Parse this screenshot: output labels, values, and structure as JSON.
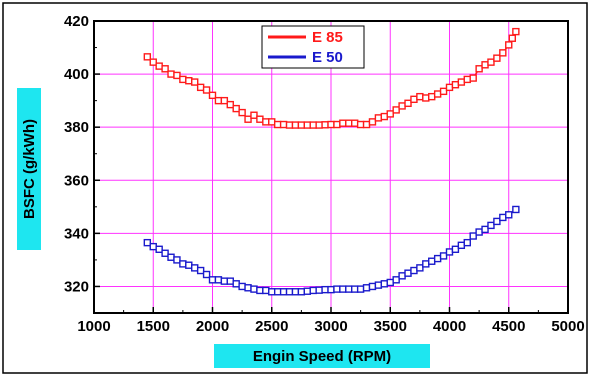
{
  "colors": {
    "e85": "#ff1a1a",
    "e50": "#1a1acc",
    "grid": "#ff33ff",
    "axis_title_background": "#1ee6f0",
    "legend_text": "#1a1acc"
  },
  "chart_data": {
    "type": "line",
    "xlabel": "Engin Speed (RPM)",
    "ylabel": "BSFC (g/kWh)",
    "xlim": [
      1000,
      5000
    ],
    "ylim": [
      310,
      420
    ],
    "x_ticks": [
      1000,
      1500,
      2000,
      2500,
      3000,
      3500,
      4000,
      4500,
      5000
    ],
    "y_ticks": [
      320,
      340,
      360,
      380,
      400,
      420
    ],
    "grid": true,
    "legend_position": "top-center",
    "series": [
      {
        "name": "E 85",
        "color": "#ff1a1a",
        "marker": "square",
        "x": [
          1450,
          1500,
          1550,
          1600,
          1650,
          1700,
          1750,
          1800,
          1850,
          1900,
          1950,
          2000,
          2050,
          2100,
          2150,
          2200,
          2250,
          2300,
          2350,
          2400,
          2450,
          2500,
          2550,
          2600,
          2650,
          2700,
          2750,
          2800,
          2850,
          2900,
          2950,
          3000,
          3050,
          3100,
          3150,
          3200,
          3250,
          3300,
          3350,
          3400,
          3450,
          3500,
          3550,
          3600,
          3650,
          3700,
          3750,
          3800,
          3850,
          3900,
          3950,
          4000,
          4050,
          4100,
          4150,
          4200,
          4250,
          4300,
          4350,
          4400,
          4450,
          4500,
          4530,
          4560
        ],
        "values": [
          406.5,
          404.5,
          403,
          402,
          400,
          399.5,
          398,
          397.5,
          397,
          395,
          394,
          392,
          390,
          390,
          388.5,
          387,
          385.5,
          383,
          384.5,
          383,
          382,
          382,
          381,
          381,
          380.8,
          380.8,
          380.8,
          380.8,
          380.8,
          380.8,
          380.9,
          381,
          381,
          381.5,
          381.5,
          381.5,
          381,
          381,
          382,
          383.5,
          384,
          385,
          386.5,
          388,
          389,
          390.5,
          391.5,
          391,
          391.5,
          392.5,
          393.5,
          395,
          396,
          397,
          398,
          398.5,
          402,
          403.5,
          404.5,
          406,
          408,
          411,
          413.5,
          416
        ]
      },
      {
        "name": "E 50",
        "color": "#1a1acc",
        "marker": "square",
        "x": [
          1450,
          1500,
          1550,
          1600,
          1650,
          1700,
          1750,
          1800,
          1850,
          1900,
          1950,
          2000,
          2050,
          2100,
          2150,
          2200,
          2250,
          2300,
          2350,
          2400,
          2450,
          2500,
          2550,
          2600,
          2650,
          2700,
          2750,
          2800,
          2850,
          2900,
          2950,
          3000,
          3050,
          3100,
          3150,
          3200,
          3250,
          3300,
          3350,
          3400,
          3450,
          3500,
          3550,
          3600,
          3650,
          3700,
          3750,
          3800,
          3850,
          3900,
          3950,
          4000,
          4050,
          4100,
          4150,
          4200,
          4250,
          4300,
          4350,
          4400,
          4450,
          4500,
          4560
        ],
        "values": [
          336.5,
          335,
          334,
          332.5,
          331,
          330,
          328.5,
          328,
          327,
          326,
          324.5,
          322.5,
          322.5,
          322,
          322,
          321,
          320,
          319.5,
          319,
          318.5,
          318.5,
          318,
          318,
          318,
          318,
          318,
          318,
          318.2,
          318.5,
          318.6,
          318.8,
          318.8,
          319,
          319,
          319,
          319,
          319,
          319.5,
          320,
          320.5,
          321,
          321.5,
          322.5,
          324,
          325,
          326,
          327,
          328.5,
          329.5,
          330.5,
          331.5,
          333,
          334,
          335.5,
          336.5,
          339,
          340.5,
          341.5,
          343,
          344.5,
          346,
          347,
          349
        ]
      }
    ]
  }
}
